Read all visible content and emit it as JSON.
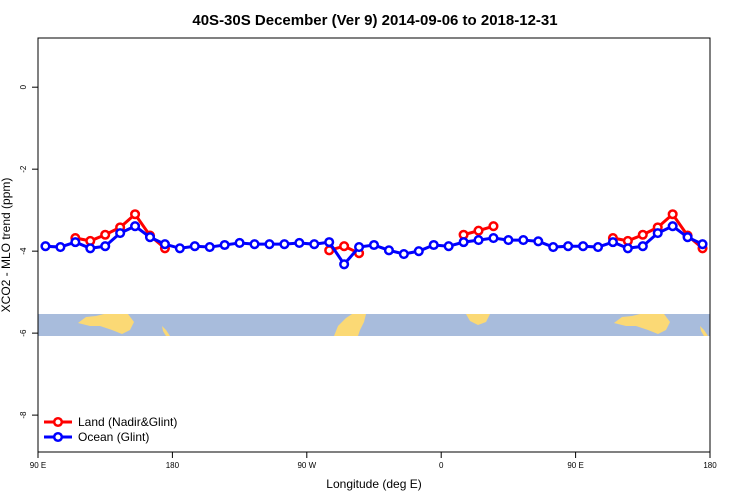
{
  "chart_data": {
    "type": "line",
    "title": "40S-30S December (Ver 9)   2014-09-06 to 2018-12-31",
    "x_label": "Longitude (deg E)",
    "y_label": "XCO2 - MLO trend (ppm)",
    "xlim": [
      90,
      540
    ],
    "ylim": [
      -8.9,
      1.2
    ],
    "xticks": [
      {
        "value": 90,
        "label": "90 E"
      },
      180,
      {
        "value": 270,
        "label": "90 W"
      },
      {
        "value": 360,
        "label": "0"
      },
      {
        "value": 450,
        "label": "90 E"
      },
      {
        "value": 540,
        "label": "180"
      }
    ],
    "yticks": [
      0,
      -2,
      -4,
      -6,
      -8
    ],
    "legend": "bottom-left",
    "x": [
      95,
      105,
      115,
      125,
      135,
      145,
      155,
      165,
      175,
      185,
      195,
      205,
      215,
      225,
      235,
      245,
      255,
      265,
      275,
      285,
      295,
      305,
      315,
      325,
      335,
      345,
      355,
      365,
      375,
      385,
      395,
      405,
      415,
      425,
      435,
      445,
      455,
      465,
      475,
      485,
      495,
      505,
      515,
      525,
      535
    ],
    "series": [
      {
        "name": "Land (Nadir&Glint)",
        "color": "#ff0000",
        "values": [
          null,
          null,
          -3.68,
          -3.75,
          -3.6,
          -3.42,
          -3.1,
          -3.62,
          -3.93,
          null,
          null,
          null,
          null,
          null,
          null,
          null,
          null,
          null,
          null,
          -3.98,
          -3.88,
          -4.05,
          null,
          null,
          null,
          null,
          null,
          null,
          -3.6,
          -3.5,
          -3.39,
          null,
          null,
          null,
          null,
          null,
          null,
          null,
          -3.68,
          -3.75,
          -3.6,
          -3.42,
          -3.1,
          -3.62,
          -3.93
        ]
      },
      {
        "name": "Ocean (Glint)",
        "color": "#0000ff",
        "values": [
          -3.88,
          -3.9,
          -3.78,
          -3.93,
          -3.88,
          -3.56,
          -3.39,
          -3.66,
          -3.83,
          -3.93,
          -3.88,
          -3.9,
          -3.85,
          -3.8,
          -3.83,
          -3.83,
          -3.83,
          -3.8,
          -3.83,
          -3.78,
          -4.32,
          -3.9,
          -3.85,
          -3.98,
          -4.07,
          -4.0,
          -3.85,
          -3.88,
          -3.78,
          -3.73,
          -3.68,
          -3.73,
          -3.73,
          -3.76,
          -3.9,
          -3.88,
          -3.88,
          -3.9,
          -3.78,
          -3.93,
          -3.88,
          -3.56,
          -3.39,
          -3.66,
          -3.83
        ]
      }
    ]
  }
}
